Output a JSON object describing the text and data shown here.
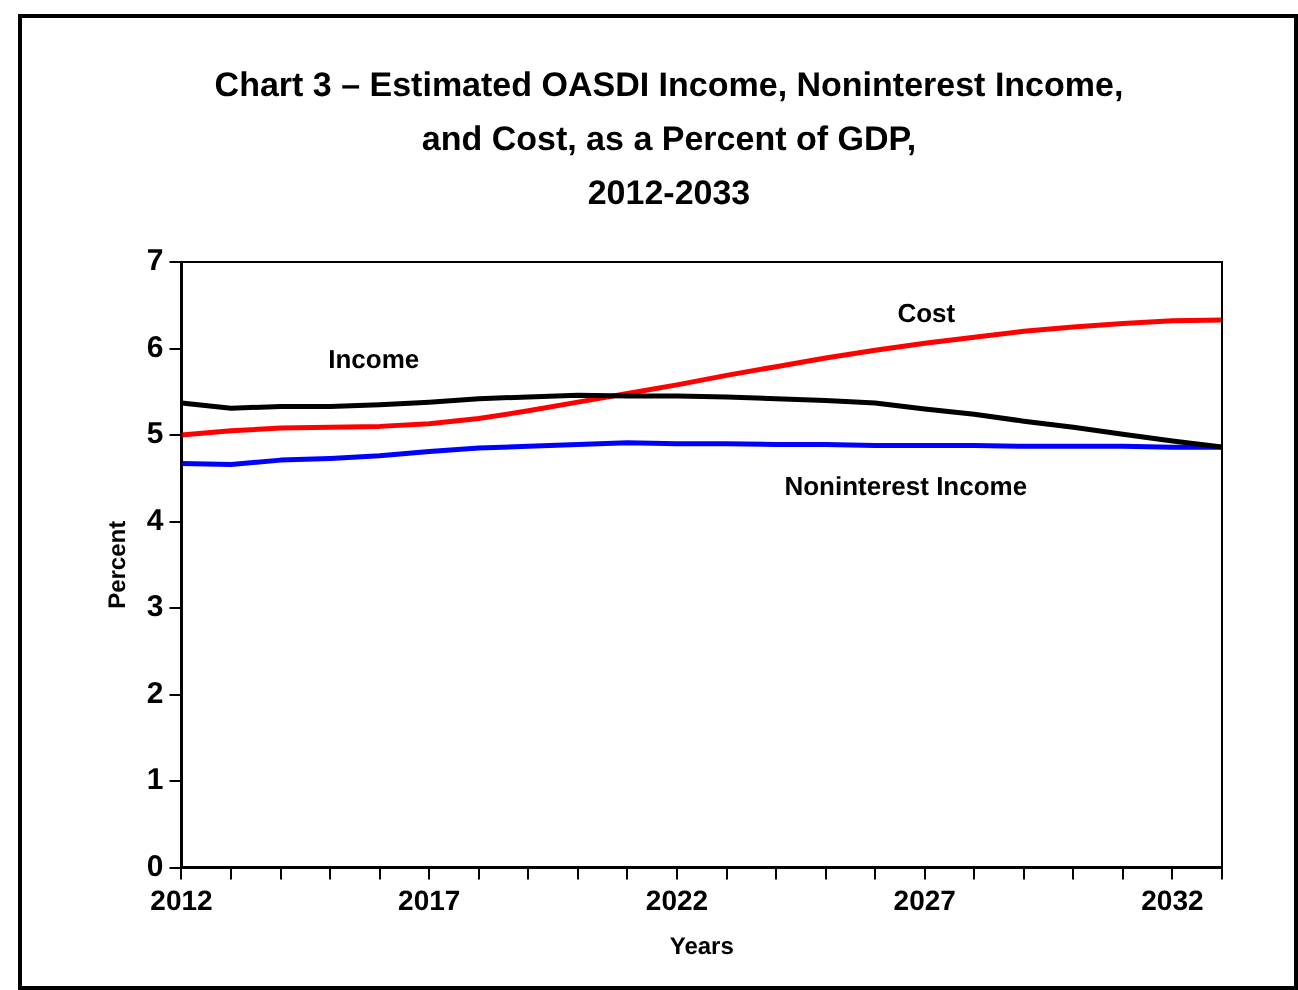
{
  "chart_data": {
    "type": "line",
    "title": "Chart 3 – Estimated OASDI Income, Noninterest Income,\nand Cost, as a Percent of GDP,\n2012-2033",
    "xlabel": "Years",
    "ylabel": "Percent",
    "x": [
      2012,
      2013,
      2014,
      2015,
      2016,
      2017,
      2018,
      2019,
      2020,
      2021,
      2022,
      2023,
      2024,
      2025,
      2026,
      2027,
      2028,
      2029,
      2030,
      2031,
      2032,
      2033
    ],
    "series": [
      {
        "name": "Income",
        "color": "#000000",
        "values": [
          5.37,
          5.31,
          5.33,
          5.33,
          5.35,
          5.38,
          5.42,
          5.44,
          5.46,
          5.45,
          5.45,
          5.44,
          5.42,
          5.4,
          5.37,
          5.3,
          5.24,
          5.16,
          5.09,
          5.01,
          4.93,
          4.86
        ]
      },
      {
        "name": "Cost",
        "color": "#ff0000",
        "values": [
          5.0,
          5.05,
          5.08,
          5.09,
          5.1,
          5.13,
          5.19,
          5.28,
          5.38,
          5.48,
          5.58,
          5.69,
          5.79,
          5.89,
          5.98,
          6.06,
          6.13,
          6.2,
          6.25,
          6.29,
          6.32,
          6.33
        ]
      },
      {
        "name": "Noninterest Income",
        "color": "#0000ff",
        "values": [
          4.67,
          4.66,
          4.71,
          4.73,
          4.76,
          4.81,
          4.85,
          4.87,
          4.89,
          4.91,
          4.9,
          4.9,
          4.89,
          4.89,
          4.88,
          4.88,
          4.88,
          4.87,
          4.87,
          4.87,
          4.86,
          4.86
        ]
      }
    ],
    "xlim": [
      2012,
      2033
    ],
    "xticks": [
      2012,
      {
        "value": 2013,
        "label": null
      },
      {
        "value": 2014,
        "label": null
      },
      {
        "value": 2015,
        "label": null
      },
      {
        "value": 2016,
        "label": null
      },
      2017,
      {
        "value": 2018,
        "label": null
      },
      {
        "value": 2019,
        "label": null
      },
      {
        "value": 2020,
        "label": null
      },
      {
        "value": 2021,
        "label": null
      },
      2022,
      {
        "value": 2023,
        "label": null
      },
      {
        "value": 2024,
        "label": null
      },
      {
        "value": 2025,
        "label": null
      },
      {
        "value": 2026,
        "label": null
      },
      2027,
      {
        "value": 2028,
        "label": null
      },
      {
        "value": 2029,
        "label": null
      },
      {
        "value": 2030,
        "label": null
      },
      {
        "value": 2031,
        "label": null
      },
      2032,
      {
        "value": 2033,
        "label": null
      }
    ],
    "ylim": [
      0,
      7
    ],
    "yticks": [
      0,
      1,
      2,
      3,
      4,
      5,
      6,
      7
    ],
    "grid": false,
    "legend": false,
    "marker": "none",
    "line_style": "solid"
  }
}
